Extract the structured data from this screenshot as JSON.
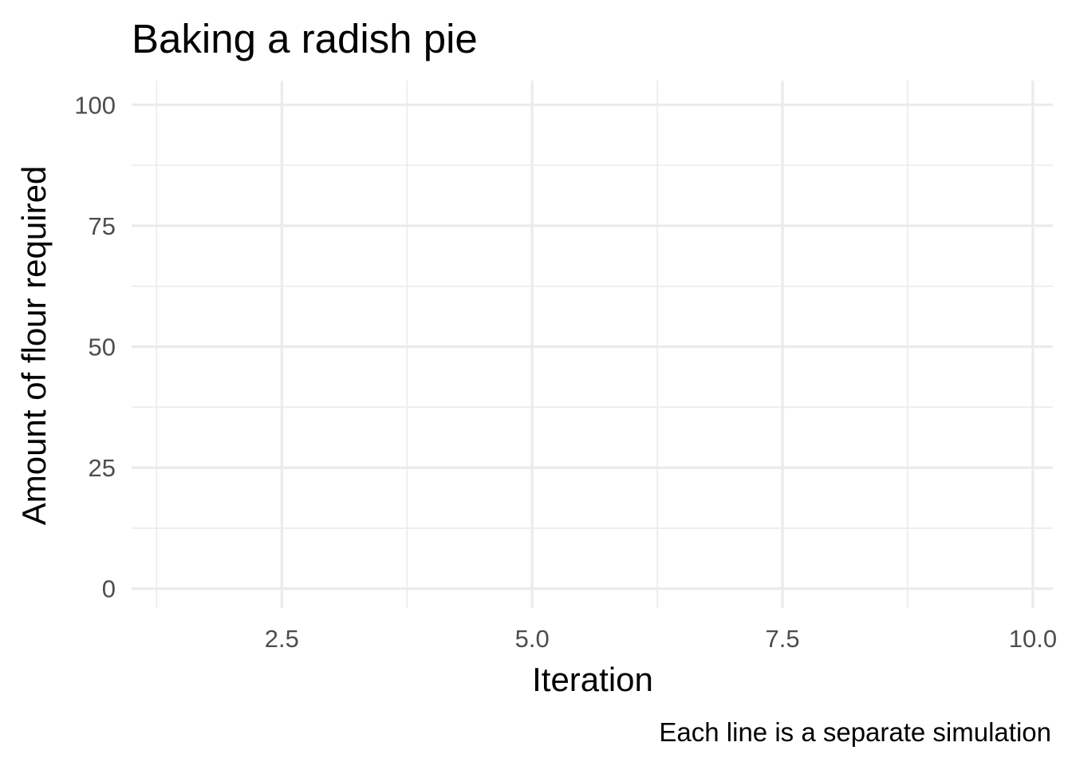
{
  "chart_data": {
    "type": "line",
    "title": "Baking a radish pie",
    "xlabel": "Iteration",
    "ylabel": "Amount of flour required",
    "caption": "Each line is a separate simulation",
    "xlim": [
      1,
      10.2
    ],
    "ylim": [
      -4,
      105
    ],
    "x_ticks": [
      2.5,
      5.0,
      7.5,
      10.0
    ],
    "x_tick_labels": [
      "2.5",
      "5.0",
      "7.5",
      "10.0"
    ],
    "x_minor_ticks": [
      1.25,
      3.75,
      6.25,
      8.75
    ],
    "y_ticks": [
      0,
      25,
      50,
      75,
      100
    ],
    "y_tick_labels": [
      "0",
      "25",
      "50",
      "75",
      "100"
    ],
    "y_minor_ticks": [
      12.5,
      37.5,
      62.5,
      87.5
    ],
    "grid": true,
    "legend": "none",
    "series": []
  }
}
